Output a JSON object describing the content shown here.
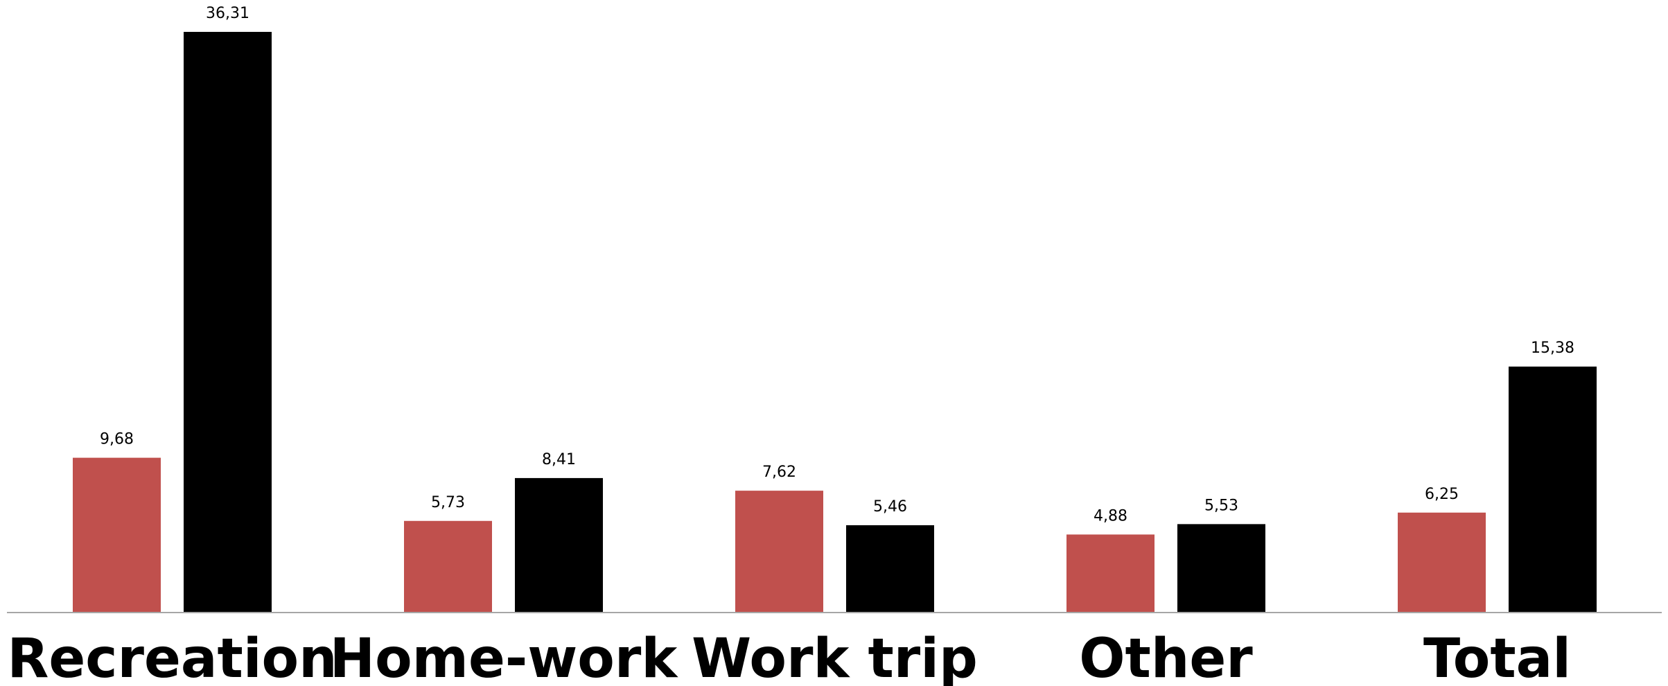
{
  "chart_data": {
    "type": "bar",
    "categories": [
      "Recreation",
      "Home-work",
      "Work trip",
      "Other",
      "Total"
    ],
    "series": [
      {
        "values": [
          9.68,
          5.73,
          7.62,
          4.88,
          6.25
        ],
        "labels": [
          "9,68",
          "5,73",
          "7,62",
          "4,88",
          "6,25"
        ],
        "color": "#c0504d"
      },
      {
        "values": [
          36.31,
          8.41,
          5.46,
          5.53,
          15.38
        ],
        "labels": [
          "36,31",
          "8,41",
          "5,46",
          "5,53",
          "15,38"
        ],
        "color": "#000000"
      }
    ],
    "ylim": [
      0,
      36.31
    ],
    "grid": false,
    "legend": "none",
    "axis_color": "#a6a6a6"
  }
}
